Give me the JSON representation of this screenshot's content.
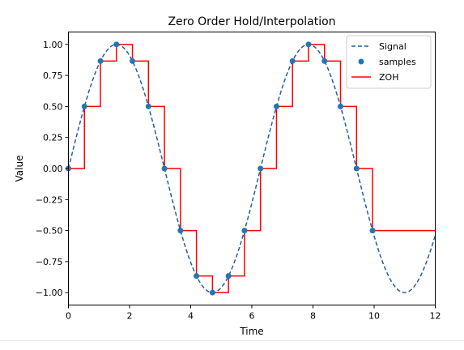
{
  "chart_data": {
    "type": "line",
    "title": "Zero Order Hold/Interpolation",
    "xlabel": "Time",
    "ylabel": "Value",
    "xlim": [
      0,
      12
    ],
    "ylim": [
      -1.1,
      1.1
    ],
    "xticks": [
      0,
      2,
      4,
      6,
      8,
      10,
      12
    ],
    "xtick_labels": [
      "0",
      "2",
      "4",
      "6",
      "8",
      "10",
      "12"
    ],
    "yticks": [
      1.0,
      0.75,
      0.5,
      0.25,
      0.0,
      -0.25,
      -0.5,
      -0.75,
      -1.0
    ],
    "ytick_labels": [
      "1.00",
      "0.75",
      "0.50",
      "0.25",
      "0.00",
      "−0.25",
      "−0.50",
      "−0.75",
      "−1.00"
    ],
    "grid": false,
    "legend": {
      "position": "top-right"
    },
    "series": [
      {
        "name": "Signal",
        "style": "dashed-line",
        "color": "#1f5fa8",
        "function": "sin(t)",
        "x_range": [
          0,
          12
        ]
      },
      {
        "name": "samples",
        "style": "markers",
        "color": "#1f77b4",
        "x": [
          0,
          0.5236,
          1.0472,
          1.5708,
          2.0944,
          2.618,
          3.1416,
          3.6652,
          4.1888,
          4.7124,
          5.236,
          5.7596,
          6.2832,
          6.8068,
          7.3304,
          7.854,
          8.3776,
          8.9012,
          9.4248,
          9.9484
        ],
        "y": [
          0.0,
          0.5,
          0.866,
          1.0,
          0.866,
          0.5,
          0.0,
          -0.5,
          -0.866,
          -1.0,
          -0.866,
          -0.5,
          0.0,
          0.5,
          0.866,
          1.0,
          0.866,
          0.5,
          0.0,
          -0.5
        ]
      },
      {
        "name": "ZOH",
        "style": "step-line",
        "color": "#ff0000",
        "hold_until": 12
      }
    ]
  }
}
